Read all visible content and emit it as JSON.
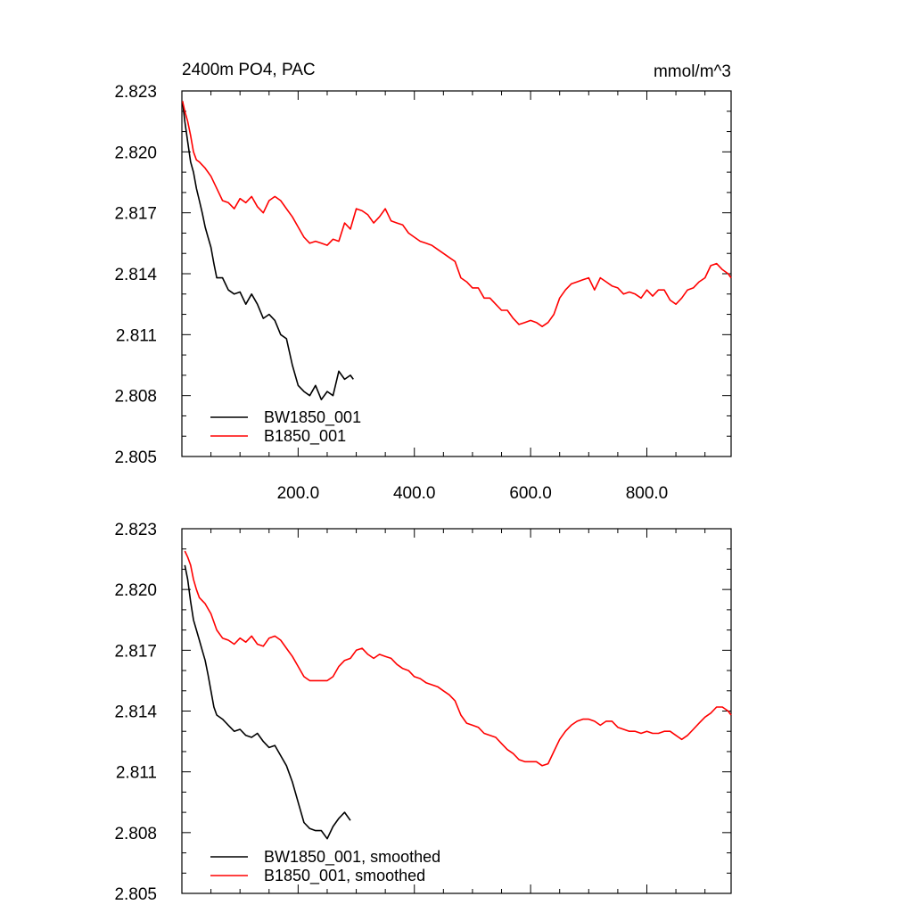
{
  "figure": {
    "title": "2400m PO4, PAC",
    "units": "mmol/m^3"
  },
  "chart_data": [
    {
      "type": "line",
      "title": "2400m PO4, PAC",
      "units_label": "mmol/m^3",
      "xlim": [
        0,
        945
      ],
      "ylim": [
        2.805,
        2.823
      ],
      "x_tick_values": [
        200,
        400,
        600,
        800
      ],
      "x_tick_labels": [
        "200.0",
        "400.0",
        "600.0",
        "800.0"
      ],
      "y_tick_values": [
        2.805,
        2.808,
        2.811,
        2.814,
        2.817,
        2.82,
        2.823
      ],
      "y_tick_labels": [
        "2.805",
        "2.808",
        "2.811",
        "2.814",
        "2.817",
        "2.820",
        "2.823"
      ],
      "grid": false,
      "legend_position": "bottom-left",
      "series": [
        {
          "name": "BW1850_001",
          "color": "#000000",
          "x": [
            1,
            5,
            10,
            15,
            20,
            25,
            30,
            35,
            40,
            45,
            50,
            55,
            60,
            70,
            80,
            90,
            100,
            110,
            120,
            130,
            140,
            150,
            160,
            170,
            180,
            190,
            200,
            210,
            220,
            230,
            240,
            250,
            260,
            270,
            280,
            290,
            295
          ],
          "y": [
            2.8225,
            2.8215,
            2.8205,
            2.8195,
            2.819,
            2.8182,
            2.8176,
            2.817,
            2.8163,
            2.8158,
            2.8153,
            2.8145,
            2.8138,
            2.8138,
            2.8132,
            2.813,
            2.8131,
            2.8125,
            2.813,
            2.8125,
            2.8118,
            2.812,
            2.8117,
            2.811,
            2.8108,
            2.8095,
            2.8085,
            2.8082,
            2.808,
            2.8085,
            2.8078,
            2.8082,
            2.808,
            2.8092,
            2.8088,
            2.809,
            2.8088
          ]
        },
        {
          "name": "B1850_001",
          "color": "#ff0000",
          "x": [
            1,
            5,
            10,
            15,
            20,
            25,
            30,
            40,
            50,
            60,
            70,
            80,
            90,
            100,
            110,
            120,
            130,
            140,
            150,
            160,
            170,
            180,
            190,
            200,
            210,
            220,
            230,
            240,
            250,
            260,
            270,
            280,
            290,
            300,
            310,
            320,
            330,
            340,
            350,
            360,
            370,
            380,
            390,
            400,
            410,
            420,
            430,
            440,
            450,
            460,
            470,
            480,
            490,
            500,
            510,
            520,
            530,
            540,
            550,
            560,
            570,
            580,
            590,
            600,
            610,
            620,
            630,
            640,
            650,
            660,
            670,
            680,
            690,
            700,
            710,
            720,
            730,
            740,
            750,
            760,
            770,
            780,
            790,
            800,
            810,
            820,
            830,
            840,
            850,
            860,
            870,
            880,
            890,
            900,
            910,
            920,
            930,
            940,
            945
          ],
          "y": [
            2.8225,
            2.822,
            2.8215,
            2.8208,
            2.82,
            2.8196,
            2.8195,
            2.8192,
            2.8188,
            2.8182,
            2.8176,
            2.8175,
            2.8172,
            2.8177,
            2.8175,
            2.8178,
            2.8173,
            2.817,
            2.8176,
            2.8178,
            2.8176,
            2.8172,
            2.8168,
            2.8163,
            2.8158,
            2.8155,
            2.8156,
            2.8155,
            2.8154,
            2.8157,
            2.8156,
            2.8165,
            2.8162,
            2.8172,
            2.8171,
            2.8169,
            2.8165,
            2.8168,
            2.8172,
            2.8166,
            2.8165,
            2.8164,
            2.816,
            2.8158,
            2.8156,
            2.8155,
            2.8154,
            2.8152,
            2.815,
            2.8148,
            2.8146,
            2.8138,
            2.8136,
            2.8133,
            2.8133,
            2.8128,
            2.8128,
            2.8125,
            2.8122,
            2.8122,
            2.8118,
            2.8115,
            2.8116,
            2.8117,
            2.8116,
            2.8114,
            2.8116,
            2.812,
            2.8128,
            2.8132,
            2.8135,
            2.8136,
            2.8137,
            2.8138,
            2.8132,
            2.8138,
            2.8136,
            2.8134,
            2.8133,
            2.813,
            2.8131,
            2.813,
            2.8128,
            2.8132,
            2.8129,
            2.8132,
            2.8132,
            2.8127,
            2.8125,
            2.8128,
            2.8132,
            2.8133,
            2.8136,
            2.8138,
            2.8144,
            2.8145,
            2.8142,
            2.814,
            2.8138
          ]
        }
      ]
    },
    {
      "type": "line",
      "xlim": [
        0,
        945
      ],
      "ylim": [
        2.805,
        2.823
      ],
      "y_tick_values": [
        2.805,
        2.808,
        2.811,
        2.814,
        2.817,
        2.82,
        2.823
      ],
      "y_tick_labels": [
        "2.805",
        "2.808",
        "2.811",
        "2.814",
        "2.817",
        "2.820",
        "2.823"
      ],
      "grid": false,
      "legend_position": "bottom-left",
      "series": [
        {
          "name": "BW1850_001, smoothed",
          "color": "#000000",
          "x": [
            5,
            10,
            15,
            20,
            25,
            30,
            35,
            40,
            45,
            50,
            55,
            60,
            70,
            80,
            90,
            100,
            110,
            120,
            130,
            140,
            150,
            160,
            170,
            180,
            190,
            200,
            210,
            220,
            230,
            240,
            250,
            260,
            270,
            280,
            290
          ],
          "y": [
            2.8212,
            2.8205,
            2.8194,
            2.8185,
            2.818,
            2.8175,
            2.817,
            2.8165,
            2.8158,
            2.815,
            2.8142,
            2.8138,
            2.8136,
            2.8133,
            2.813,
            2.8131,
            2.8128,
            2.8127,
            2.8129,
            2.8125,
            2.8122,
            2.8123,
            2.8118,
            2.8113,
            2.8105,
            2.8095,
            2.8085,
            2.8082,
            2.8081,
            2.8081,
            2.8077,
            2.8083,
            2.8087,
            2.809,
            2.8086
          ]
        },
        {
          "name": "B1850_001, smoothed",
          "color": "#ff0000",
          "x": [
            5,
            10,
            15,
            20,
            25,
            30,
            40,
            50,
            60,
            70,
            80,
            90,
            100,
            110,
            120,
            130,
            140,
            150,
            160,
            170,
            180,
            190,
            200,
            210,
            220,
            230,
            240,
            250,
            260,
            270,
            280,
            290,
            300,
            310,
            320,
            330,
            340,
            350,
            360,
            370,
            380,
            390,
            400,
            410,
            420,
            430,
            440,
            450,
            460,
            470,
            480,
            490,
            500,
            510,
            520,
            530,
            540,
            550,
            560,
            570,
            580,
            590,
            600,
            610,
            620,
            630,
            640,
            650,
            660,
            670,
            680,
            690,
            700,
            710,
            720,
            730,
            740,
            750,
            760,
            770,
            780,
            790,
            800,
            810,
            820,
            830,
            840,
            850,
            860,
            870,
            880,
            890,
            900,
            910,
            920,
            930,
            940,
            945
          ],
          "y": [
            2.8219,
            2.8216,
            2.8212,
            2.8205,
            2.82,
            2.8196,
            2.8193,
            2.8188,
            2.818,
            2.8176,
            2.8175,
            2.8173,
            2.8176,
            2.8174,
            2.8177,
            2.8173,
            2.8172,
            2.8176,
            2.8177,
            2.8175,
            2.8171,
            2.8167,
            2.8162,
            2.8157,
            2.8155,
            2.8155,
            2.8155,
            2.8155,
            2.8157,
            2.8162,
            2.8165,
            2.8166,
            2.817,
            2.8171,
            2.8168,
            2.8166,
            2.8168,
            2.8167,
            2.8166,
            2.8163,
            2.8161,
            2.816,
            2.8157,
            2.8156,
            2.8154,
            2.8153,
            2.8152,
            2.815,
            2.8148,
            2.8145,
            2.8138,
            2.8134,
            2.8133,
            2.8132,
            2.8129,
            2.8128,
            2.8127,
            2.8124,
            2.8121,
            2.8119,
            2.8116,
            2.8115,
            2.8115,
            2.8115,
            2.8113,
            2.8114,
            2.812,
            2.8126,
            2.813,
            2.8133,
            2.8135,
            2.8136,
            2.8136,
            2.8135,
            2.8133,
            2.8135,
            2.8135,
            2.8132,
            2.8131,
            2.813,
            2.813,
            2.8129,
            2.813,
            2.8129,
            2.8129,
            2.813,
            2.813,
            2.8128,
            2.8126,
            2.8128,
            2.8131,
            2.8134,
            2.8137,
            2.8139,
            2.8142,
            2.8142,
            2.814,
            2.8138
          ]
        }
      ]
    }
  ]
}
